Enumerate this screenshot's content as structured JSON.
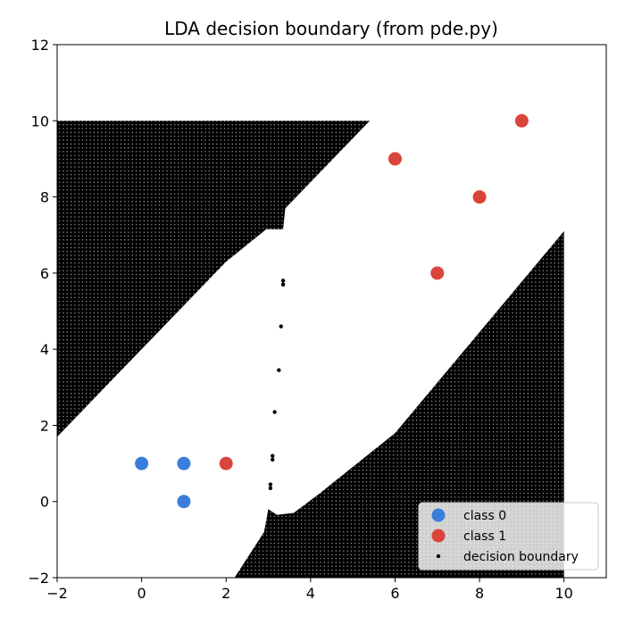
{
  "chart_data": {
    "type": "scatter",
    "title": "LDA decision boundary (from pde.py)",
    "xlabel": "",
    "ylabel": "",
    "xlim": [
      -2,
      11
    ],
    "ylim": [
      -2,
      12
    ],
    "x_ticks": [
      -2,
      0,
      2,
      4,
      6,
      8,
      10
    ],
    "y_ticks": [
      -2,
      0,
      2,
      4,
      6,
      8,
      10,
      12
    ],
    "grid": false,
    "legend_position": "lower-right",
    "series": [
      {
        "name": "class 0",
        "color": "#3a7ddb",
        "x": [
          0,
          1,
          1
        ],
        "y": [
          1,
          1,
          0
        ]
      },
      {
        "name": "class 1",
        "color": "#d9453a",
        "x": [
          2,
          6,
          7,
          8,
          9
        ],
        "y": [
          1,
          9,
          6,
          8,
          10
        ]
      },
      {
        "name": "decision boundary",
        "color": "#000000",
        "regions": [
          {
            "region": "upper-left",
            "outline": [
              [
                -2,
                10
              ],
              [
                5.4,
                10
              ],
              [
                3.4,
                7.7
              ],
              [
                3.35,
                7.15
              ],
              [
                2.95,
                7.15
              ],
              [
                2.0,
                6.3
              ],
              [
                -2,
                1.7
              ]
            ]
          },
          {
            "region": "lower-right",
            "outline": [
              [
                10,
                7.1
              ],
              [
                10,
                -2
              ],
              [
                2.2,
                -2
              ],
              [
                2.9,
                -0.8
              ],
              [
                3.0,
                -0.2
              ],
              [
                3.2,
                -0.35
              ],
              [
                3.6,
                -0.3
              ],
              [
                4.2,
                0.2
              ],
              [
                6.0,
                1.8
              ]
            ]
          }
        ],
        "isolated_points": [
          [
            3.35,
            5.8
          ],
          [
            3.35,
            5.7
          ],
          [
            3.3,
            4.6
          ],
          [
            3.25,
            3.45
          ],
          [
            3.15,
            2.35
          ],
          [
            3.1,
            1.2
          ],
          [
            3.1,
            1.1
          ],
          [
            3.05,
            0.45
          ],
          [
            3.05,
            0.35
          ]
        ]
      }
    ]
  }
}
